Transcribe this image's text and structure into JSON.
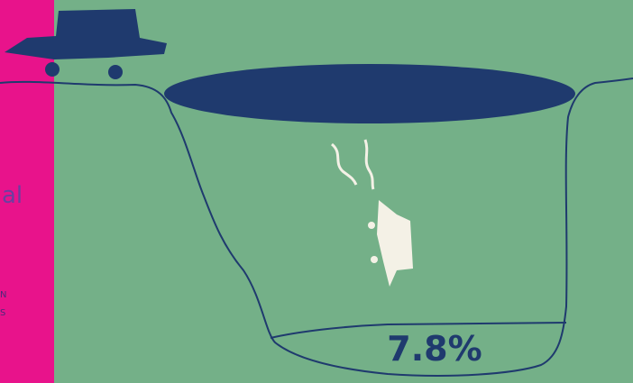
{
  "texts": {
    "fragment_1": "al",
    "fragment_2": "N",
    "fragment_3": "S"
  },
  "highlight": {
    "value_label": "7.8%"
  }
}
